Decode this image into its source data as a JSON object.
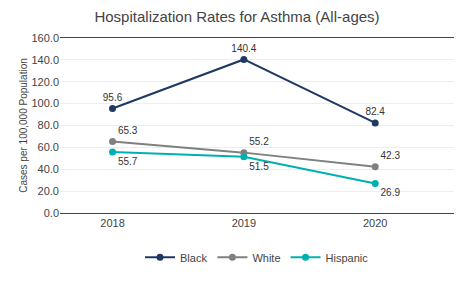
{
  "chart_data": {
    "type": "line",
    "title": "Hospitalization Rates for Asthma (All-ages)",
    "ylabel": "Cases per 100,000 Population",
    "x": [
      2018,
      2019,
      2020
    ],
    "series": [
      {
        "name": "Black",
        "color": "#1f3864",
        "marker": "circle",
        "line_style": "solid",
        "values": [
          95.6,
          140.4,
          82.4
        ]
      },
      {
        "name": "White",
        "color": "#808080",
        "marker": "circle",
        "line_style": "solid",
        "values": [
          65.3,
          55.2,
          42.3
        ]
      },
      {
        "name": "Hispanic",
        "color": "#00b0b0",
        "marker": "circle",
        "line_style": "solid",
        "values": [
          55.7,
          51.5,
          26.9
        ]
      }
    ],
    "xlim": [
      2017.6,
      2020.6
    ],
    "xticks": [
      2018,
      2019,
      2020
    ],
    "ylim": [
      0,
      160
    ],
    "yticks": [
      {
        "value": 0,
        "label": "0.0"
      },
      {
        "value": 20,
        "label": "20.0"
      },
      {
        "value": 40,
        "label": "40.0"
      },
      {
        "value": 60,
        "label": "60.0"
      },
      {
        "value": 80,
        "label": "80.0"
      },
      {
        "value": 100,
        "label": "100.0"
      },
      {
        "value": 120,
        "label": "120.0"
      },
      {
        "value": 140,
        "label": "140.0"
      },
      {
        "value": 160,
        "label": "160.0"
      }
    ],
    "grid": true,
    "data_labels": true,
    "legend": "bottom"
  }
}
